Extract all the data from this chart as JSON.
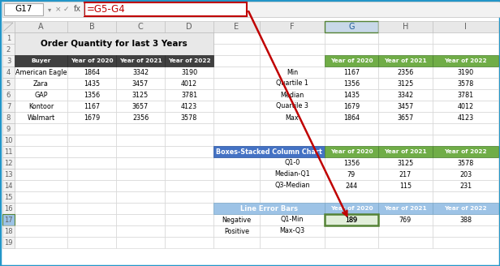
{
  "title": "Order Quantity for last 3 Years",
  "name_box": "G17",
  "formula_bar": "=G5-G4",
  "left_table": {
    "headers": [
      "Buyer",
      "Year of 2020",
      "Year of 2021",
      "Year of 2022"
    ],
    "data": [
      [
        "American Eagle",
        1864,
        3342,
        3190
      ],
      [
        "Zara",
        1435,
        3457,
        4012
      ],
      [
        "GAP",
        1356,
        3125,
        3781
      ],
      [
        "Kontoor",
        1167,
        3657,
        4123
      ],
      [
        "Walmart",
        1679,
        2356,
        3578
      ]
    ]
  },
  "stats_table": {
    "headers": [
      "Year of 2020",
      "Year of 2021",
      "Year of 2022"
    ],
    "labels": [
      "Min",
      "Quartile 1",
      "Median",
      "Quartile 3",
      "Max"
    ],
    "data": [
      [
        1167,
        2356,
        3190
      ],
      [
        1356,
        3125,
        3578
      ],
      [
        1435,
        3342,
        3781
      ],
      [
        1679,
        3457,
        4012
      ],
      [
        1864,
        3657,
        4123
      ]
    ]
  },
  "boxes_table": {
    "title": "Boxes-Stacked Column Chart",
    "headers": [
      "Year of 2020",
      "Year of 2021",
      "Year of 2022"
    ],
    "labels": [
      "Q1-0",
      "Median-Q1",
      "Q3-Median"
    ],
    "data": [
      [
        1356,
        3125,
        3578
      ],
      [
        79,
        217,
        203
      ],
      [
        244,
        115,
        231
      ]
    ]
  },
  "error_table": {
    "title": "Line Error Bars",
    "headers": [
      "Year of 2020",
      "Year of 2021",
      "Year of 2022"
    ],
    "col1_labels": [
      "Negative",
      "Positive"
    ],
    "col2_labels": [
      "Q1-Min",
      "Max-Q3"
    ],
    "data_row17": [
      189,
      769,
      388
    ]
  },
  "colors": {
    "excel_border": "#2396C8",
    "formula_bar_bg": "#F2F2F2",
    "namebox_border": "#AAAAAA",
    "left_header_bg": "#404040",
    "left_header_text": "#FFFFFF",
    "stats_header_bg": "#70AD47",
    "stats_header_text": "#FFFFFF",
    "boxes_header_bg": "#4472C4",
    "boxes_header_text": "#FFFFFF",
    "error_header_bg": "#9DC3E6",
    "error_header_text": "#FFFFFF",
    "title_bg": "#E8E8E8",
    "cell_bg": "#FFFFFF",
    "cell_text": "#000000",
    "grid_line": "#D0D0D0",
    "col_header_bg": "#E8E8E8",
    "col_header_selected_bg": "#C8D8E8",
    "col_header_selected_text": "#1F5C99",
    "col_header_text": "#606060",
    "row_num_bg": "#F2F2F2",
    "row_num_text": "#606060",
    "row_num_selected_bg": "#9DC3E6",
    "formula_border_color": "#C00000",
    "formula_text_color": "#C00000",
    "arrow_color": "#C00000",
    "g17_cell_border": "#548235",
    "g17_cell_bg": "#E2EFDA"
  }
}
